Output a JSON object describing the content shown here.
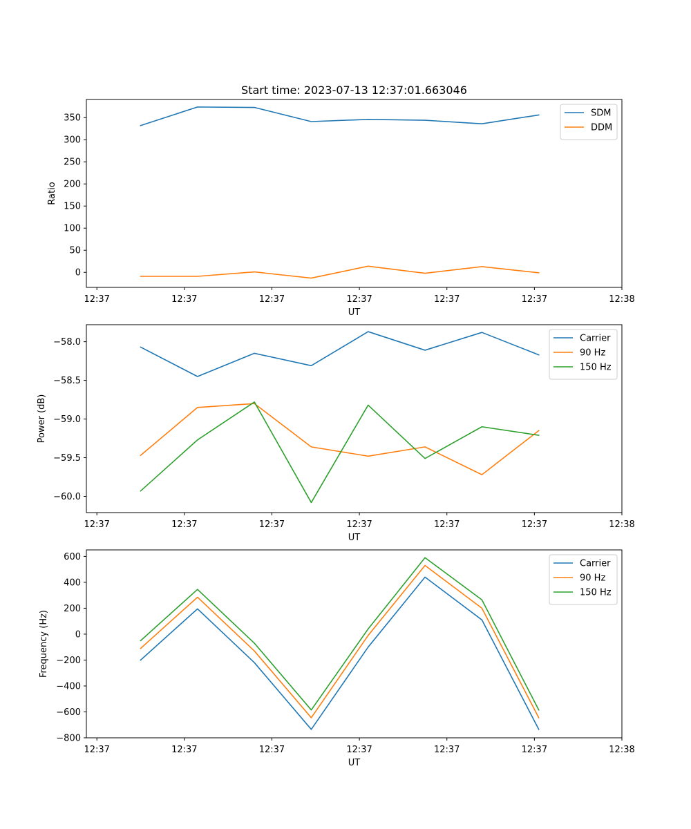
{
  "figure": {
    "title": "Start time: 2023-07-13 12:37:01.663046",
    "colors": [
      "#1f77b4",
      "#ff7f0e",
      "#2ca02c"
    ]
  },
  "chart_data": [
    {
      "type": "line",
      "title": "Start time: 2023-07-13 12:37:01.663046",
      "xlabel": "UT",
      "ylabel": "Ratio",
      "x_tick_labels": [
        "12:37",
        "12:37",
        "12:37",
        "12:37",
        "12:37",
        "12:37",
        "12:38"
      ],
      "x_point_positions": [
        0.5,
        1.15,
        1.8,
        2.45,
        3.1,
        3.75,
        4.4,
        5.05
      ],
      "xlim": [
        -0.12,
        6.0
      ],
      "yticks": [
        0,
        50,
        100,
        150,
        200,
        250,
        300,
        350
      ],
      "ylim": [
        -34,
        391
      ],
      "legend": "upper right",
      "series": [
        {
          "name": "SDM",
          "color": "#1f77b4",
          "values": [
            332,
            374,
            373,
            341,
            346,
            344,
            336,
            356
          ]
        },
        {
          "name": "DDM",
          "color": "#ff7f0e",
          "values": [
            -9,
            -9,
            1,
            -13,
            14,
            -2,
            13,
            -1
          ]
        }
      ]
    },
    {
      "type": "line",
      "xlabel": "UT",
      "ylabel": "Power (dB)",
      "x_tick_labels": [
        "12:37",
        "12:37",
        "12:37",
        "12:37",
        "12:37",
        "12:37",
        "12:38"
      ],
      "x_point_positions": [
        0.5,
        1.15,
        1.8,
        2.45,
        3.1,
        3.75,
        4.4,
        5.05
      ],
      "xlim": [
        -0.12,
        6.0
      ],
      "yticks": [
        -60.0,
        -59.5,
        -59.0,
        -58.5,
        -58.0
      ],
      "ytick_labels": [
        "−60.0",
        "−59.5",
        "−59.0",
        "−58.5",
        "−58.0"
      ],
      "ylim": [
        -60.21,
        -57.78
      ],
      "legend": "upper right",
      "series": [
        {
          "name": "Carrier",
          "color": "#1f77b4",
          "values": [
            -58.07,
            -58.45,
            -58.15,
            -58.31,
            -57.87,
            -58.11,
            -57.88,
            -58.17
          ]
        },
        {
          "name": "90 Hz",
          "color": "#ff7f0e",
          "values": [
            -59.47,
            -58.85,
            -58.8,
            -59.36,
            -59.48,
            -59.36,
            -59.72,
            -59.15
          ]
        },
        {
          "name": "150 Hz",
          "color": "#2ca02c",
          "values": [
            -59.93,
            -59.27,
            -58.78,
            -60.08,
            -58.82,
            -59.51,
            -59.1,
            -59.21
          ]
        }
      ]
    },
    {
      "type": "line",
      "xlabel": "UT",
      "ylabel": "Frequency (Hz)",
      "x_tick_labels": [
        "12:37",
        "12:37",
        "12:37",
        "12:37",
        "12:37",
        "12:37",
        "12:38"
      ],
      "x_point_positions": [
        0.5,
        1.15,
        1.8,
        2.45,
        3.1,
        3.75,
        4.4,
        5.05
      ],
      "xlim": [
        -0.12,
        6.0
      ],
      "yticks": [
        -800,
        -600,
        -400,
        -200,
        0,
        200,
        400,
        600
      ],
      "ytick_labels": [
        "−800",
        "−600",
        "−400",
        "−200",
        "0",
        "200",
        "400",
        "600"
      ],
      "ylim": [
        -800,
        650
      ],
      "legend": "upper right",
      "series": [
        {
          "name": "Carrier",
          "color": "#1f77b4",
          "values": [
            -200,
            195,
            -220,
            -735,
            -100,
            440,
            110,
            -735
          ]
        },
        {
          "name": "90 Hz",
          "color": "#ff7f0e",
          "values": [
            -110,
            285,
            -130,
            -645,
            -10,
            530,
            200,
            -645
          ]
        },
        {
          "name": "150 Hz",
          "color": "#2ca02c",
          "values": [
            -50,
            345,
            -70,
            -585,
            40,
            590,
            265,
            -585
          ]
        }
      ]
    }
  ]
}
